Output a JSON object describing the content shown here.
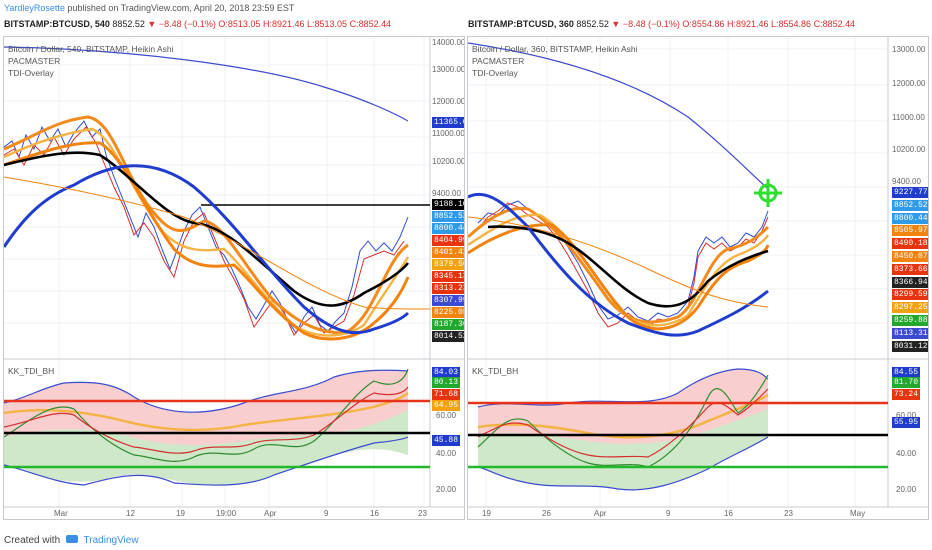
{
  "header": {
    "user": "YardleyRosette",
    "published_text": "published on TradingView.com, April 20, 2018 23:59 EST"
  },
  "left": {
    "symbol_line": {
      "symbol": "BITSTAMP:BTCUSD, 540",
      "price": "8852.52",
      "change": "▼ −8.48 (−0.1%)",
      "o": "O:8513.05",
      "h": "H:8921.46",
      "l": "L:8513.05",
      "c": "C:8852.44"
    },
    "title": "Bitcoin / Dollar, 540, BITSTAMP, Heikin Ashi",
    "ind1": "PACMASTER",
    "ind2": "TDI-Overlay",
    "osc_label": "KK_TDI_BH",
    "price_axis": [
      "14000.00",
      "13000.00",
      "12000.00",
      "11000.00",
      "10200.00",
      "9400.00"
    ],
    "osc_axis": [
      "60.00",
      "40.00",
      "20.00"
    ],
    "time_axis": [
      "Mar",
      "12",
      "19",
      "19:00",
      "Apr",
      "9",
      "16",
      "23"
    ],
    "price_tags": [
      {
        "v": "11365.07",
        "c": "#1f3ccf"
      },
      {
        "v": "9188.10",
        "c": "#000000"
      },
      {
        "v": "8852.52",
        "c": "#2f9be8"
      },
      {
        "v": "8800.44",
        "c": "#2f9be8"
      },
      {
        "v": "8404.99",
        "c": "#e8330f"
      },
      {
        "v": "8401.42",
        "c": "#f2830f"
      },
      {
        "v": "8379.56",
        "c": "#f2a20f"
      },
      {
        "v": "8345.13",
        "c": "#e8330f"
      },
      {
        "v": "8313.23",
        "c": "#e8330f"
      },
      {
        "v": "8307.99",
        "c": "#3a4bd0"
      },
      {
        "v": "8225.05",
        "c": "#f2830f"
      },
      {
        "v": "8187.36",
        "c": "#22a82c"
      },
      {
        "v": "8014.52",
        "c": "#222222"
      }
    ],
    "osc_tags": [
      {
        "v": "84.03",
        "c": "#1f3ccf"
      },
      {
        "v": "80.13",
        "c": "#22a82c"
      },
      {
        "v": "71.68",
        "c": "#e8330f"
      },
      {
        "v": "64.95",
        "c": "#f2a20f"
      },
      {
        "v": "45.88",
        "c": "#1f3ccf"
      }
    ]
  },
  "right": {
    "symbol_line": {
      "symbol": "BITSTAMP:BTCUSD, 360",
      "price": "8852.52",
      "change": "▼ −8.48 (−0.1%)",
      "o": "O:8554.86",
      "h": "H:8921.46",
      "l": "L:8554.86",
      "c": "C:8852.44"
    },
    "title": "Bitcoin / Dollar, 360, BITSTAMP, Heikin Ashi",
    "ind1": "PACMASTER",
    "ind2": "TDI-Overlay",
    "osc_label": "KK_TDI_BH",
    "price_axis": [
      "13000.00",
      "12000.00",
      "11000.00",
      "10200.00",
      "9400.00"
    ],
    "osc_axis": [
      "60.00",
      "40.00",
      "20.00"
    ],
    "time_axis": [
      "19",
      "26",
      "Apr",
      "9",
      "16",
      "23",
      "May"
    ],
    "price_tags": [
      {
        "v": "9227.77",
        "c": "#1f3ccf"
      },
      {
        "v": "8852.52",
        "c": "#2f9be8"
      },
      {
        "v": "8800.44",
        "c": "#2f9be8"
      },
      {
        "v": "8505.97",
        "c": "#f2830f"
      },
      {
        "v": "8490.18",
        "c": "#e8330f"
      },
      {
        "v": "8450.07",
        "c": "#f2830f"
      },
      {
        "v": "8373.66",
        "c": "#e8330f"
      },
      {
        "v": "8366.94",
        "c": "#222222"
      },
      {
        "v": "8299.59",
        "c": "#e8330f"
      },
      {
        "v": "8297.25",
        "c": "#f2a20f"
      },
      {
        "v": "8259.88",
        "c": "#22a82c"
      },
      {
        "v": "8113.31",
        "c": "#3a4bd0"
      },
      {
        "v": "8031.12",
        "c": "#222222"
      }
    ],
    "osc_tags": [
      {
        "v": "84.55",
        "c": "#1f3ccf"
      },
      {
        "v": "81.70",
        "c": "#22a82c"
      },
      {
        "v": "73.24",
        "c": "#e8330f"
      },
      {
        "v": "55.95",
        "c": "#1f3ccf"
      }
    ]
  },
  "footer": {
    "created": "Created with",
    "brand": "TradingView"
  }
}
